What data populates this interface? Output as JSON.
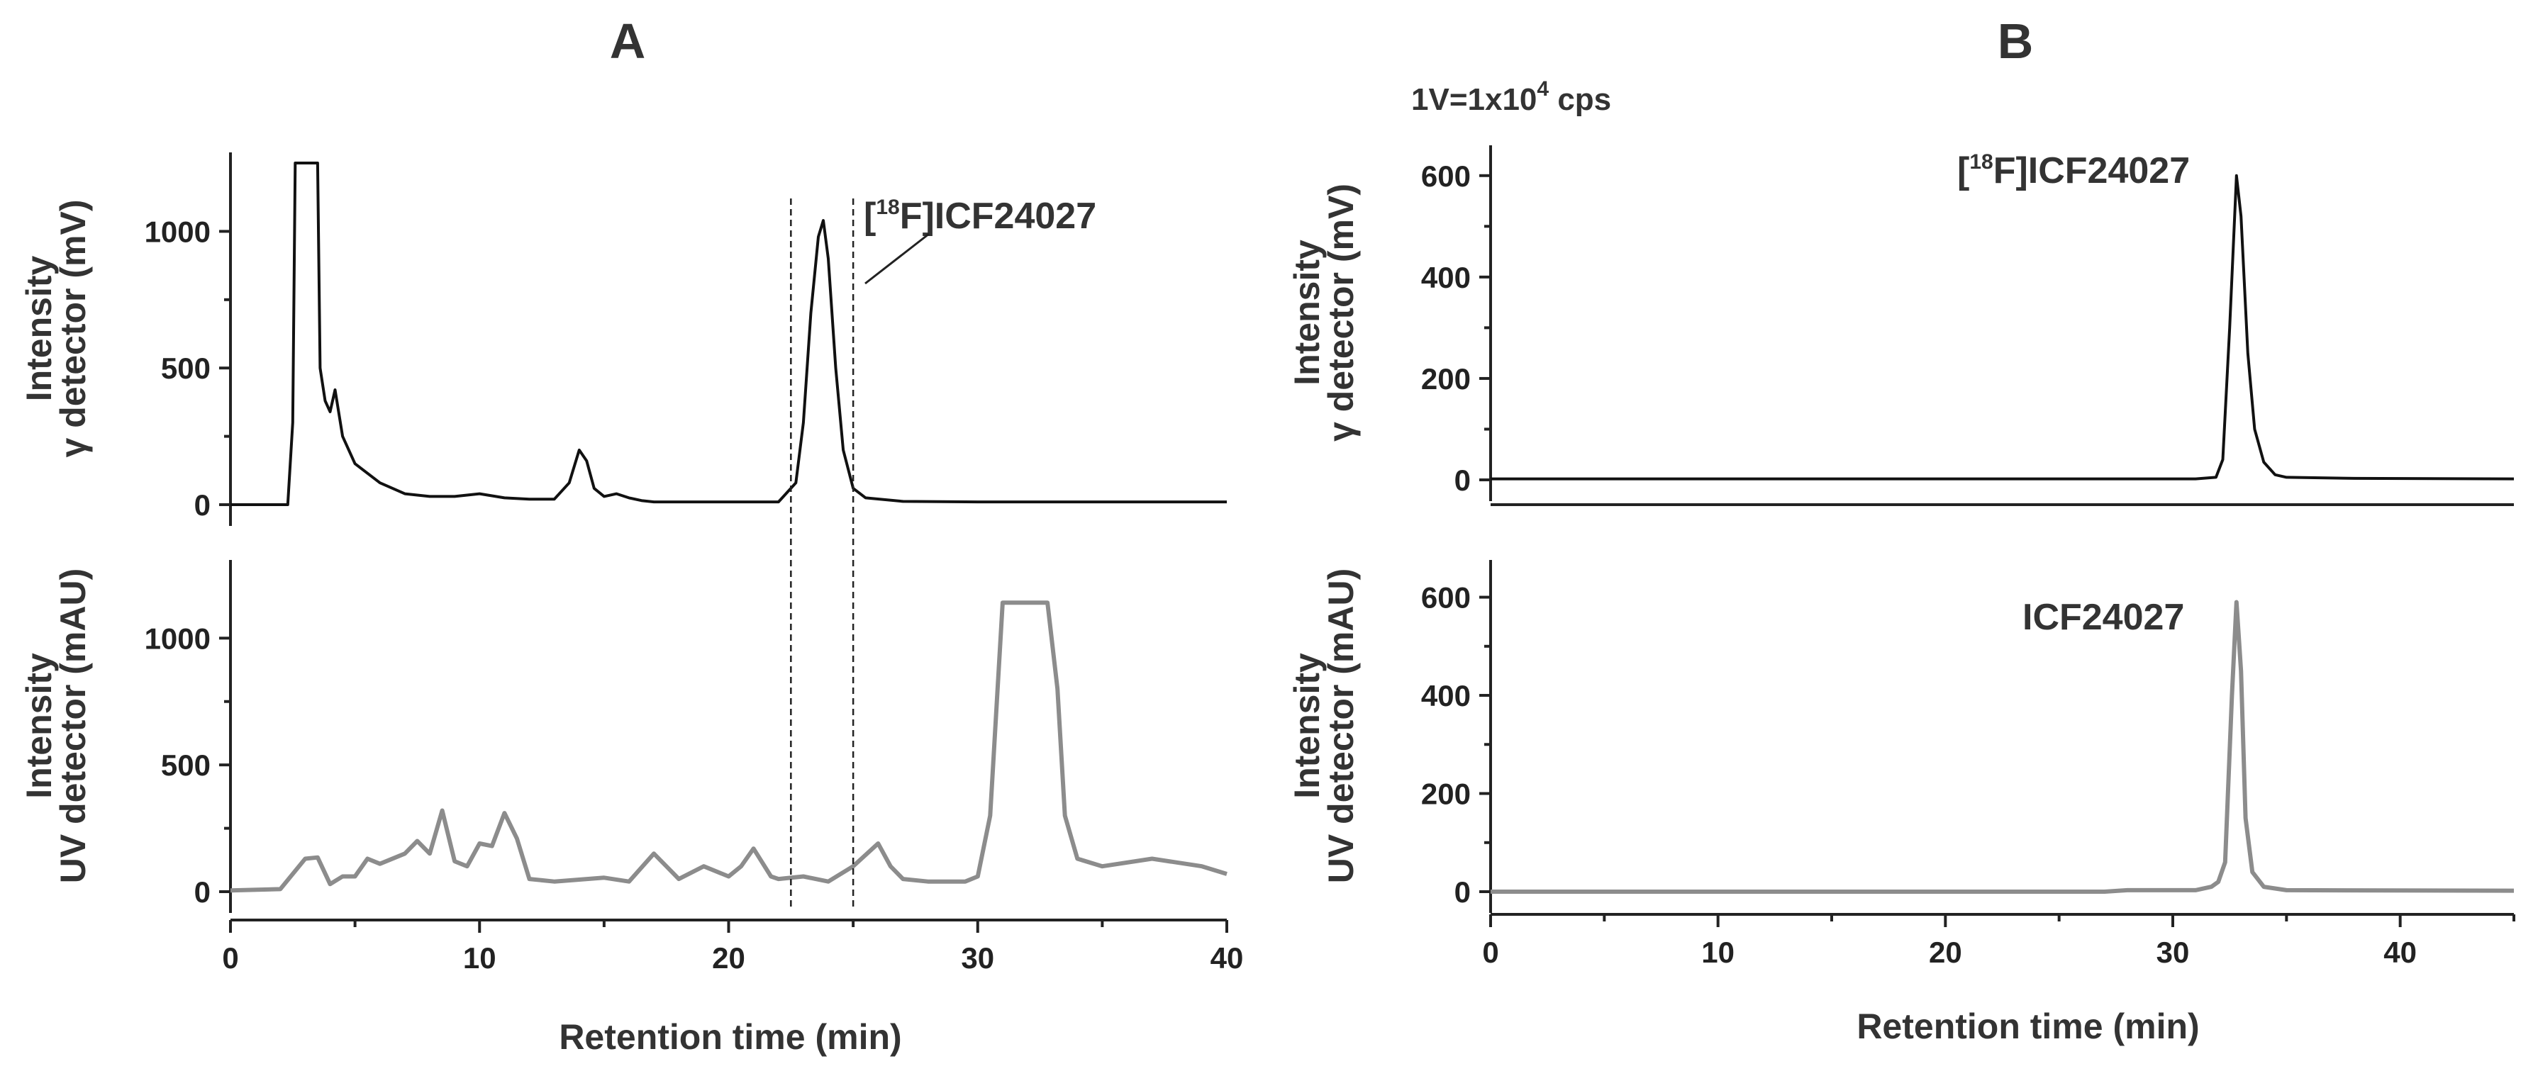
{
  "colors": {
    "gamma_trace": "#111111",
    "uv_trace": "#8c8c8c",
    "axis": "#222222"
  },
  "chart_data": [
    {
      "panel": "A",
      "type": "line",
      "title": "A",
      "xlabel": "Retention time (min)",
      "xlim": [
        0,
        40
      ],
      "xticks": [
        0,
        10,
        20,
        30,
        40
      ],
      "vlines": [
        22.5,
        25
      ],
      "subplots": [
        {
          "ylabel_line1": "Intensity",
          "ylabel_line2": "γ detector (mV)",
          "ylim": [
            0,
            1250
          ],
          "yticks": [
            0,
            500,
            1000
          ],
          "color": "#111111",
          "annotation": {
            "pre": "[",
            "sup": "18",
            "post": "F]ICF24027"
          },
          "x": [
            0,
            2.3,
            2.5,
            2.6,
            3.5,
            3.6,
            3.8,
            4.0,
            4.2,
            4.5,
            5,
            6,
            7,
            8,
            9,
            10,
            11,
            12,
            13,
            13.6,
            14,
            14.3,
            14.6,
            15,
            15.5,
            16,
            16.5,
            17,
            19,
            21,
            22,
            22.7,
            23,
            23.3,
            23.6,
            23.8,
            24.0,
            24.3,
            24.6,
            25,
            25.5,
            27,
            30,
            35,
            40
          ],
          "y": [
            0,
            0,
            300,
            1250,
            1250,
            500,
            380,
            340,
            420,
            250,
            150,
            80,
            40,
            30,
            30,
            40,
            25,
            20,
            20,
            80,
            200,
            160,
            60,
            30,
            40,
            25,
            15,
            10,
            10,
            10,
            10,
            80,
            300,
            700,
            980,
            1040,
            900,
            500,
            200,
            60,
            25,
            12,
            10,
            10,
            10
          ]
        },
        {
          "ylabel_line1": "Intensity",
          "ylabel_line2": "UV detector (mAU)",
          "ylim": [
            0,
            1300
          ],
          "yticks": [
            0,
            500,
            1000
          ],
          "color": "#8c8c8c",
          "x": [
            0,
            2,
            2.5,
            3,
            3.5,
            4,
            4.5,
            5,
            5.5,
            6,
            7,
            7.5,
            8,
            8.5,
            9,
            9.5,
            10,
            10.5,
            11,
            11.5,
            12,
            13,
            15,
            16,
            17,
            17.5,
            18,
            19,
            20,
            20.5,
            21,
            21.7,
            22,
            23,
            24,
            25,
            26,
            26.5,
            27,
            28,
            29.5,
            30,
            30.5,
            31,
            32.8,
            33.2,
            33.5,
            34,
            35,
            37,
            39,
            40
          ],
          "y": [
            5,
            10,
            70,
            130,
            135,
            30,
            60,
            60,
            130,
            110,
            150,
            200,
            150,
            320,
            120,
            100,
            190,
            180,
            310,
            210,
            50,
            40,
            55,
            40,
            150,
            100,
            50,
            100,
            60,
            100,
            170,
            60,
            50,
            60,
            40,
            100,
            190,
            100,
            50,
            40,
            40,
            60,
            300,
            1140,
            1140,
            800,
            300,
            130,
            100,
            130,
            100,
            70
          ]
        }
      ]
    },
    {
      "panel": "B",
      "type": "line",
      "title": "B",
      "xlabel": "Retention time (min)",
      "xlim": [
        0,
        45
      ],
      "xticks": [
        0,
        10,
        20,
        30,
        40
      ],
      "scale_note": {
        "pre": "1V=1x10",
        "sup": "4",
        "post": " cps"
      },
      "subplots": [
        {
          "ylabel_line1": "Intensity",
          "ylabel_line2": "γ detector (mV)",
          "ylim": [
            0,
            650
          ],
          "yticks": [
            0,
            200,
            400,
            600
          ],
          "color": "#111111",
          "annotation": {
            "pre": "[",
            "sup": "18",
            "post": "F]ICF24027"
          },
          "x": [
            0,
            31,
            31.9,
            32.2,
            32.5,
            32.8,
            33,
            33.3,
            33.6,
            34,
            34.5,
            35,
            38,
            45
          ],
          "y": [
            2,
            2,
            5,
            40,
            300,
            600,
            520,
            250,
            100,
            35,
            10,
            5,
            3,
            2
          ]
        },
        {
          "ylabel_line1": "Intensity",
          "ylabel_line2": "UV detector (mAU)",
          "ylim": [
            0,
            660
          ],
          "yticks": [
            0,
            200,
            400,
            600
          ],
          "color": "#8c8c8c",
          "annotation": {
            "text": "ICF24027"
          },
          "x": [
            0,
            27,
            28,
            31,
            31.7,
            32,
            32.3,
            32.6,
            32.8,
            33,
            33.2,
            33.5,
            34,
            35,
            45
          ],
          "y": [
            0,
            0,
            3,
            3,
            10,
            20,
            60,
            400,
            590,
            450,
            150,
            40,
            10,
            3,
            2
          ]
        }
      ]
    }
  ]
}
